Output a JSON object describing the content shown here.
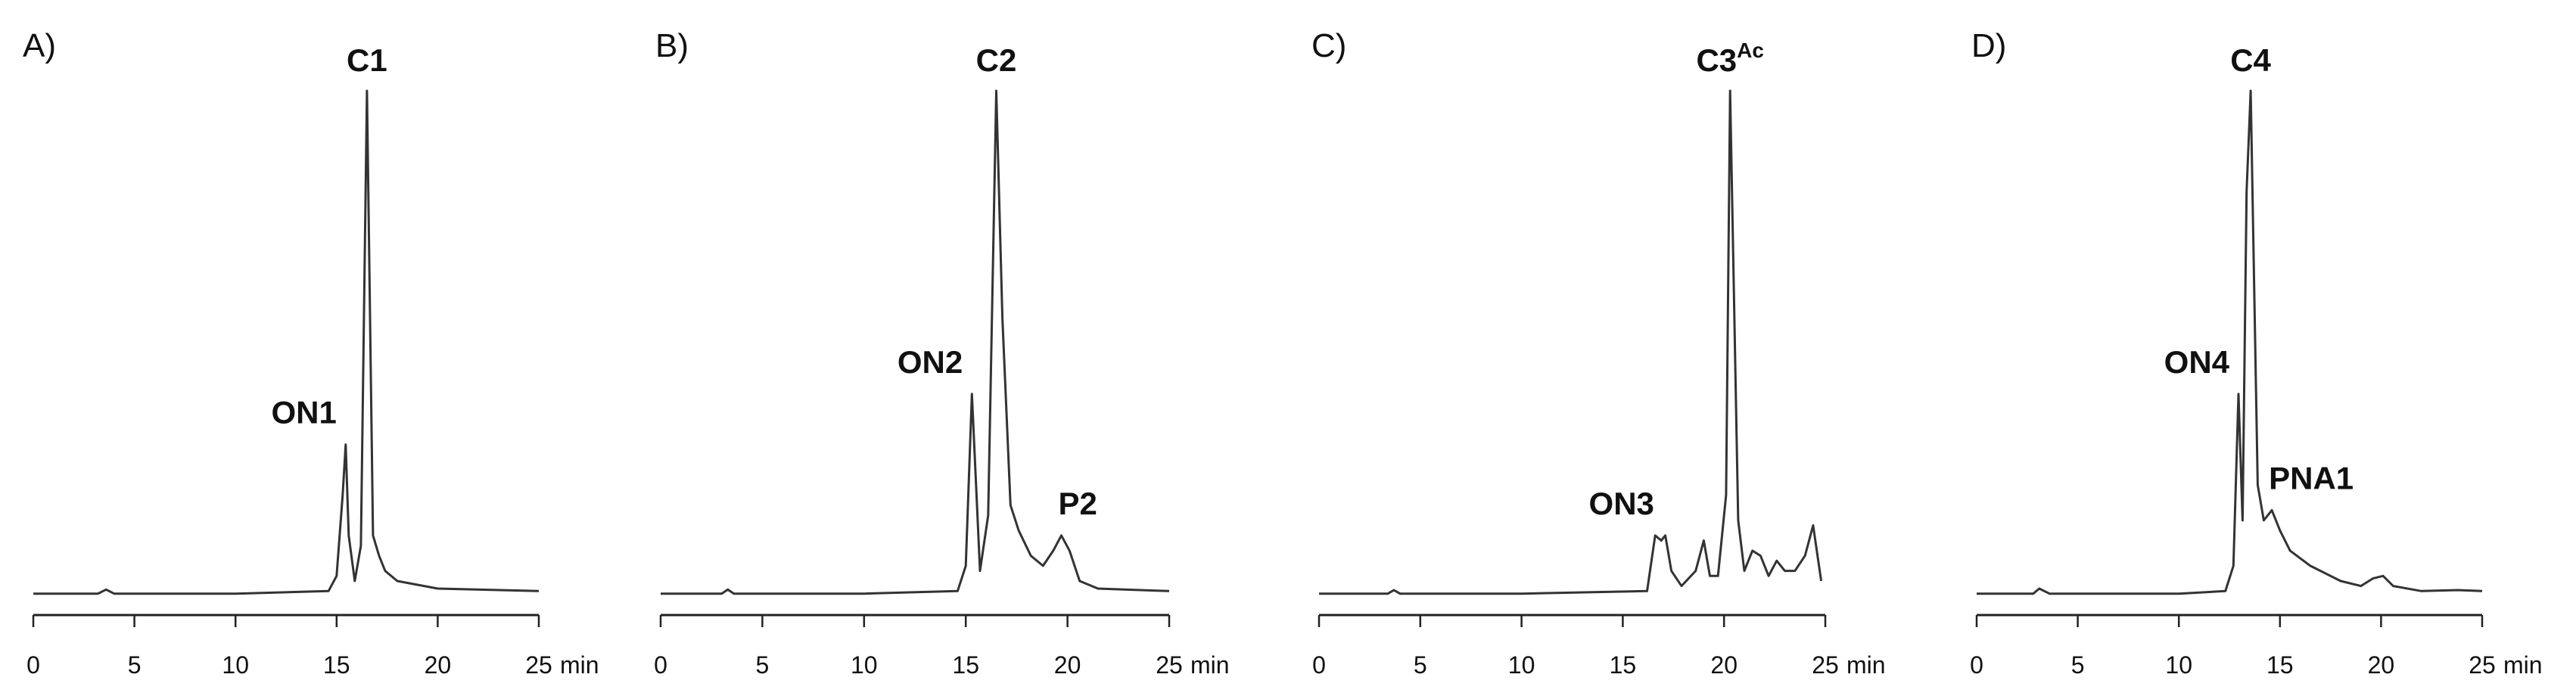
{
  "chart_data": [
    {
      "type": "line",
      "panel": "A)",
      "xunit": "min",
      "xlim": [
        0,
        25
      ],
      "xticks": [
        0,
        5,
        10,
        15,
        20,
        25
      ],
      "ylim": [
        0,
        100
      ],
      "ylabel": "",
      "series": [
        {
          "name": "A",
          "x": [
            0,
            3.2,
            3.6,
            4.0,
            10,
            14.6,
            15.0,
            15.3,
            15.45,
            15.6,
            15.9,
            16.2,
            16.5,
            16.8,
            17.1,
            17.4,
            18,
            20,
            25
          ],
          "y": [
            0.5,
            0.5,
            1.3,
            0.5,
            0.5,
            1,
            4,
            20,
            30,
            12,
            3,
            10,
            100,
            12,
            8,
            5,
            3,
            1.5,
            1
          ]
        }
      ],
      "peaks": [
        {
          "text": "ON1",
          "x": 15.45,
          "y": 30
        },
        {
          "text": "C1",
          "x": 16.5,
          "y": 100
        }
      ]
    },
    {
      "type": "line",
      "panel": "B)",
      "xunit": "min",
      "xlim": [
        0,
        25
      ],
      "xticks": [
        0,
        5,
        10,
        15,
        20,
        25
      ],
      "ylim": [
        0,
        100
      ],
      "ylabel": "",
      "series": [
        {
          "name": "B",
          "x": [
            0,
            3,
            3.3,
            3.6,
            10,
            14.6,
            15.0,
            15.3,
            15.7,
            16.1,
            16.5,
            16.8,
            17.2,
            17.6,
            18.2,
            18.8,
            19.3,
            19.7,
            20.1,
            20.6,
            21.5,
            25
          ],
          "y": [
            0.5,
            0.5,
            1.3,
            0.5,
            0.5,
            1,
            6,
            40,
            5,
            16,
            100,
            55,
            18,
            13,
            8,
            6,
            9,
            12,
            9,
            3,
            1.5,
            1
          ]
        }
      ],
      "peaks": [
        {
          "text": "ON2",
          "x": 15.3,
          "y": 40
        },
        {
          "text": "C2",
          "x": 16.5,
          "y": 100
        },
        {
          "text": "P2",
          "x": 19.7,
          "y": 12
        }
      ]
    },
    {
      "type": "line",
      "panel": "C)",
      "xunit": "min",
      "xlim": [
        0,
        25
      ],
      "xticks": [
        0,
        5,
        10,
        15,
        20,
        25
      ],
      "ylim": [
        0,
        100
      ],
      "ylabel": "",
      "series": [
        {
          "name": "C",
          "x": [
            0,
            3.4,
            3.7,
            4.0,
            10,
            16.2,
            16.6,
            16.9,
            17.1,
            17.4,
            17.9,
            18.6,
            19.0,
            19.3,
            19.7,
            20.1,
            20.3,
            20.7,
            21.0,
            21.4,
            21.8,
            22.2,
            22.6,
            23.0,
            23.5,
            24.0,
            24.4,
            24.8
          ],
          "y": [
            0.5,
            0.5,
            1.2,
            0.5,
            0.5,
            1,
            12,
            11,
            12,
            5,
            2,
            5,
            11,
            4,
            4,
            20,
            100,
            15,
            5,
            9,
            8,
            4,
            7,
            5,
            5,
            8,
            14,
            3
          ]
        }
      ],
      "peaks": [
        {
          "text": "ON3",
          "x": 17.0,
          "y": 12
        },
        {
          "text": "C3",
          "sup": "Ac",
          "x": 20.3,
          "y": 100
        }
      ]
    },
    {
      "type": "line",
      "panel": "D)",
      "xunit": "min",
      "xlim": [
        0,
        25
      ],
      "xticks": [
        0,
        5,
        10,
        15,
        20,
        25
      ],
      "ylim": [
        0,
        100
      ],
      "ylabel": "",
      "series": [
        {
          "name": "D",
          "x": [
            0,
            2.8,
            3.1,
            3.6,
            10,
            12.3,
            12.7,
            12.95,
            13.15,
            13.35,
            13.55,
            13.9,
            14.2,
            14.6,
            15.0,
            15.5,
            16.5,
            18.0,
            19.0,
            19.6,
            20.1,
            20.6,
            22,
            23.8,
            25
          ],
          "y": [
            0.5,
            0.5,
            1.5,
            0.5,
            0.5,
            1,
            6,
            40,
            15,
            80,
            100,
            22,
            15,
            17,
            13,
            9,
            6,
            3,
            2,
            3.5,
            4,
            2,
            1,
            1.2,
            1
          ]
        }
      ],
      "peaks": [
        {
          "text": "ON4",
          "x": 12.95,
          "y": 40
        },
        {
          "text": "C4",
          "x": 13.55,
          "y": 100
        },
        {
          "text": "PNA1",
          "x": 14.6,
          "y": 17
        }
      ]
    }
  ]
}
